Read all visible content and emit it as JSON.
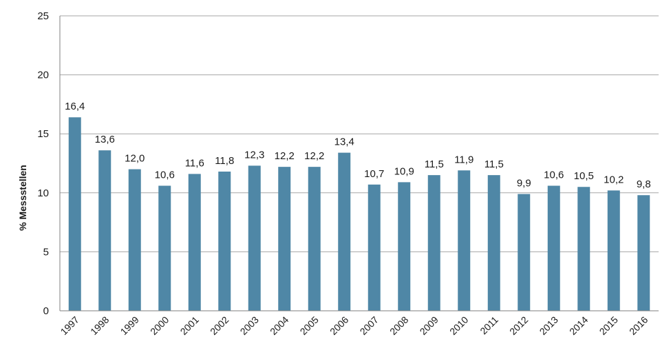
{
  "chart_data": {
    "type": "bar",
    "title": "",
    "xlabel": "",
    "ylabel": "% Messstellen",
    "ylim": [
      0,
      25
    ],
    "yticks": [
      "0",
      "5",
      "10",
      "15",
      "20",
      "25"
    ],
    "grid": true,
    "bar_color": "#4f87a6",
    "categories": [
      "1997",
      "1998",
      "1999",
      "2000",
      "2001",
      "2002",
      "2003",
      "2004",
      "2005",
      "2006",
      "2007",
      "2008",
      "2009",
      "2010",
      "2011",
      "2012",
      "2013",
      "2014",
      "2015",
      "2016"
    ],
    "values": [
      16.4,
      13.6,
      12.0,
      10.6,
      11.6,
      11.8,
      12.3,
      12.2,
      12.2,
      13.4,
      10.7,
      10.9,
      11.5,
      11.9,
      11.5,
      9.9,
      10.6,
      10.5,
      10.2,
      9.8
    ],
    "data_labels": [
      "16,4",
      "13,6",
      "12,0",
      "10,6",
      "11,6",
      "11,8",
      "12,3",
      "12,2",
      "12,2",
      "13,4",
      "10,7",
      "10,9",
      "11,5",
      "11,9",
      "11,5",
      "9,9",
      "10,6",
      "10,5",
      "10,2",
      "9,8"
    ]
  }
}
